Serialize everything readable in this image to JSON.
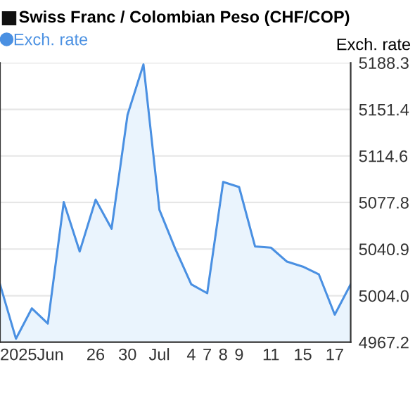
{
  "chart_data": {
    "type": "area",
    "title": "Swiss Franc / Colombian Peso (CHF/COP)",
    "ylabel": "Exch. rate",
    "categories": [
      null,
      null,
      "2025Jun",
      null,
      null,
      null,
      "26",
      null,
      "30",
      null,
      "Jul",
      null,
      "4",
      "7",
      "8",
      "9",
      null,
      "11",
      null,
      "15",
      null,
      "17",
      null
    ],
    "series": [
      {
        "name": "Exch. rate",
        "color": "#4a90e2",
        "values": [
          5013,
          4970,
          4994,
          4982,
          5078,
          5039,
          5080,
          5057,
          5147,
          5187,
          5072,
          5041,
          5013,
          5006,
          5094,
          5090,
          5043,
          5042,
          5031,
          5027,
          5021,
          4989,
          5013
        ]
      }
    ],
    "ylim": [
      4967.2,
      5188.3
    ],
    "yticks": [
      4967.2,
      {
        "value": 5004,
        "label": "5004.0"
      },
      5040.9,
      5077.8,
      5114.6,
      5151.4,
      5188.3
    ],
    "grid": "y",
    "legend": "top left"
  }
}
